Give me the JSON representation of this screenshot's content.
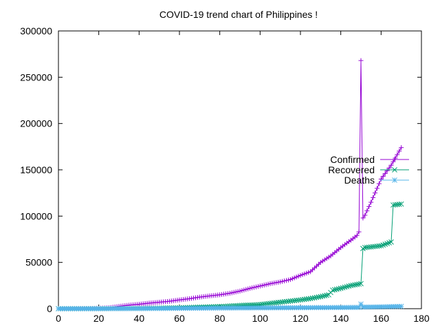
{
  "chart_data": {
    "type": "line",
    "title": "COVID-19 trend chart of Philippines !",
    "xlabel": "",
    "ylabel": "",
    "xlim": [
      0,
      180
    ],
    "ylim": [
      0,
      300000
    ],
    "xticks": [
      0,
      20,
      40,
      60,
      80,
      100,
      120,
      140,
      160,
      180
    ],
    "yticks": [
      0,
      50000,
      100000,
      150000,
      200000,
      250000,
      300000
    ],
    "grid": false,
    "legend_position": "right",
    "series": [
      {
        "name": "Confirmed",
        "color": "#9400d3",
        "marker": "plus",
        "x": [
          0,
          10,
          20,
          25,
          30,
          35,
          40,
          45,
          50,
          55,
          60,
          65,
          70,
          75,
          80,
          85,
          90,
          95,
          100,
          105,
          110,
          115,
          120,
          125,
          130,
          135,
          140,
          145,
          148,
          149,
          150,
          151,
          152,
          155,
          160,
          165,
          170
        ],
        "y": [
          0,
          100,
          500,
          1000,
          2500,
          3800,
          4800,
          6000,
          7000,
          8000,
          9500,
          10800,
          12500,
          13800,
          15000,
          16700,
          19000,
          22000,
          24500,
          27000,
          29000,
          31500,
          36000,
          40000,
          50000,
          57000,
          66000,
          74000,
          79000,
          83000,
          268000,
          98000,
          101000,
          115000,
          140000,
          155000,
          174000
        ]
      },
      {
        "name": "Recovered",
        "color": "#009e73",
        "marker": "x",
        "x": [
          0,
          20,
          40,
          60,
          80,
          90,
          100,
          110,
          120,
          125,
          130,
          134,
          136,
          140,
          145,
          150,
          151,
          152,
          160,
          165,
          166,
          170
        ],
        "y": [
          0,
          50,
          300,
          1000,
          2300,
          3500,
          4500,
          7000,
          9500,
          11000,
          13000,
          15000,
          20000,
          22000,
          25000,
          27000,
          65000,
          66000,
          68000,
          72000,
          112000,
          113000
        ]
      },
      {
        "name": "Deaths",
        "color": "#56b4e9",
        "marker": "star",
        "x": [
          0,
          20,
          40,
          60,
          80,
          100,
          120,
          140,
          149,
          150,
          151,
          160,
          170
        ],
        "y": [
          0,
          20,
          150,
          400,
          700,
          900,
          1100,
          1300,
          1400,
          5000,
          1700,
          2000,
          2500
        ]
      }
    ]
  }
}
